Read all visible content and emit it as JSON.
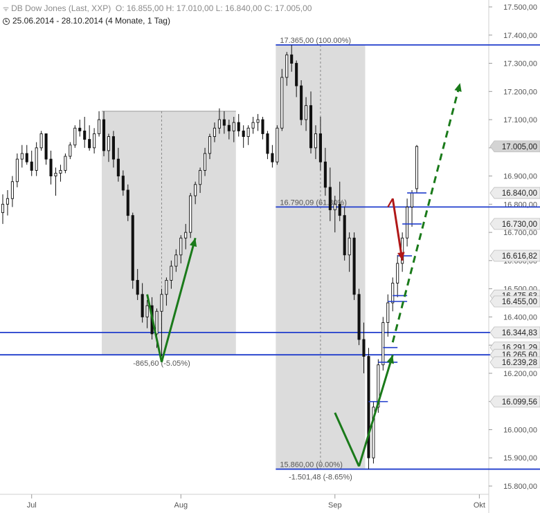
{
  "header": {
    "title": "DB Dow Jones (Last, XXP)",
    "ohlc": "O: 16.855,00  H: 17.010,00  L: 16.840,00  C: 17.005,00",
    "range": "25.06.2014 - 28.10.2014 (4 Monate, 1 Tag)"
  },
  "chart_data": {
    "type": "candlestick",
    "ylim": [
      15775,
      17520
    ],
    "y_ticks": [
      15800,
      15900,
      16000,
      16100,
      16200,
      16300,
      16400,
      16500,
      16600,
      16700,
      16800,
      16900,
      17000,
      17100,
      17200,
      17300,
      17400,
      17500
    ],
    "y_tick_labels": [
      "15.800,00",
      "15.900,00",
      "16.000,00",
      "16.100,00",
      "16.200,00",
      "16.300,00",
      "16.400,00",
      "16.500,00",
      "16.600,00",
      "16.700,00",
      "16.800,00",
      "16.900,00",
      "17.000,00",
      "17.100,00",
      "17.200,00",
      "17.300,00",
      "17.400,00",
      "17.500,00"
    ],
    "x_labels": [
      {
        "label": "Jul",
        "day": 6
      },
      {
        "label": "Aug",
        "day": 37
      },
      {
        "label": "Sep",
        "day": 69
      },
      {
        "label": "Okt",
        "day": 99
      }
    ],
    "x_range": [
      0,
      160
    ],
    "candles": [
      [
        16770,
        16835,
        16730,
        16800
      ],
      [
        16800,
        16850,
        16760,
        16820
      ],
      [
        16820,
        16900,
        16790,
        16880
      ],
      [
        16880,
        16980,
        16860,
        16960
      ],
      [
        16960,
        17010,
        16930,
        16980
      ],
      [
        16980,
        17010,
        16940,
        16950
      ],
      [
        16950,
        16990,
        16900,
        16920
      ],
      [
        16920,
        17020,
        16900,
        17000
      ],
      [
        17000,
        17060,
        16990,
        17050
      ],
      [
        17050,
        17040,
        16940,
        16960
      ],
      [
        16960,
        16990,
        16870,
        16900
      ],
      [
        16900,
        16930,
        16830,
        16910
      ],
      [
        16910,
        16940,
        16880,
        16920
      ],
      [
        16920,
        16980,
        16910,
        16970
      ],
      [
        16970,
        17020,
        16960,
        17010
      ],
      [
        17010,
        17080,
        17000,
        17070
      ],
      [
        17070,
        17100,
        17040,
        17060
      ],
      [
        17060,
        17110,
        17000,
        17030
      ],
      [
        17030,
        17080,
        16990,
        17000
      ],
      [
        17000,
        17070,
        16980,
        17050
      ],
      [
        17050,
        17130,
        17040,
        17100
      ],
      [
        17100,
        17130,
        16970,
        16990
      ],
      [
        16990,
        17050,
        16950,
        17040
      ],
      [
        17040,
        17060,
        16930,
        16960
      ],
      [
        16960,
        17000,
        16880,
        16900
      ],
      [
        16900,
        16920,
        16830,
        16850
      ],
      [
        16850,
        16870,
        16740,
        16760
      ],
      [
        16760,
        16770,
        16500,
        16530
      ],
      [
        16530,
        16570,
        16460,
        16480
      ],
      [
        16480,
        16520,
        16380,
        16400
      ],
      [
        16400,
        16460,
        16360,
        16440
      ],
      [
        16440,
        16470,
        16320,
        16340
      ],
      [
        16340,
        16430,
        16290,
        16420
      ],
      [
        16420,
        16500,
        16260,
        16480
      ],
      [
        16480,
        16540,
        16440,
        16530
      ],
      [
        16530,
        16600,
        16500,
        16580
      ],
      [
        16580,
        16640,
        16560,
        16620
      ],
      [
        16620,
        16690,
        16590,
        16680
      ],
      [
        16680,
        16730,
        16640,
        16700
      ],
      [
        16700,
        16840,
        16680,
        16830
      ],
      [
        16830,
        16880,
        16800,
        16870
      ],
      [
        16870,
        16930,
        16840,
        16920
      ],
      [
        16920,
        17000,
        16900,
        16980
      ],
      [
        16980,
        17050,
        16960,
        17040
      ],
      [
        17040,
        17090,
        17020,
        17070
      ],
      [
        17070,
        17140,
        17050,
        17100
      ],
      [
        17100,
        17130,
        17050,
        17080
      ],
      [
        17080,
        17100,
        17030,
        17060
      ],
      [
        17060,
        17110,
        17020,
        17090
      ],
      [
        17090,
        17120,
        17040,
        17060
      ],
      [
        17060,
        17080,
        17000,
        17040
      ],
      [
        17040,
        17080,
        17010,
        17070
      ],
      [
        17070,
        17110,
        17050,
        17090
      ],
      [
        17090,
        17120,
        17060,
        17100
      ],
      [
        17100,
        17110,
        17030,
        17050
      ],
      [
        17050,
        17060,
        16960,
        16980
      ],
      [
        16980,
        17010,
        16930,
        16950
      ],
      [
        16950,
        17080,
        16940,
        17070
      ],
      [
        17070,
        17280,
        17060,
        17250
      ],
      [
        17250,
        17340,
        17220,
        17330
      ],
      [
        17330,
        17365,
        17270,
        17300
      ],
      [
        17300,
        17310,
        17180,
        17220
      ],
      [
        17220,
        17240,
        17080,
        17100
      ],
      [
        17100,
        17180,
        17060,
        17150
      ],
      [
        17150,
        17200,
        16980,
        17000
      ],
      [
        17000,
        17080,
        16960,
        17050
      ],
      [
        17050,
        17110,
        16920,
        16950
      ],
      [
        16950,
        17000,
        16830,
        16860
      ],
      [
        16860,
        16930,
        16740,
        16780
      ],
      [
        16780,
        16830,
        16700,
        16800
      ],
      [
        16800,
        16880,
        16740,
        16760
      ],
      [
        16760,
        16790,
        16600,
        16620
      ],
      [
        16620,
        16700,
        16560,
        16680
      ],
      [
        16680,
        16700,
        16460,
        16480
      ],
      [
        16480,
        16500,
        16300,
        16320
      ],
      [
        16320,
        16380,
        16200,
        16260
      ],
      [
        16260,
        16290,
        15860,
        15900
      ],
      [
        15900,
        16100,
        15880,
        16080
      ],
      [
        16080,
        16250,
        16060,
        16230
      ],
      [
        16230,
        16400,
        16210,
        16380
      ],
      [
        16380,
        16480,
        16330,
        16450
      ],
      [
        16450,
        16540,
        16420,
        16520
      ],
      [
        16520,
        16620,
        16470,
        16590
      ],
      [
        16590,
        16700,
        16560,
        16680
      ],
      [
        16680,
        16820,
        16650,
        16790
      ],
      [
        16790,
        16850,
        16720,
        16840
      ],
      [
        16855,
        17010,
        16840,
        17005
      ]
    ],
    "levels": [
      {
        "value": 17365,
        "label": "17.365,00 (100.00%)"
      },
      {
        "value": 16790.09,
        "label": "16.790,09 (61.80%)"
      },
      {
        "value": 16344.83,
        "label": ""
      },
      {
        "value": 16265.6,
        "label": ""
      },
      {
        "value": 15860,
        "label": "15.860,00 (0.00%)"
      }
    ],
    "annotations": [
      {
        "text": "-865,60 (-5.05%)"
      },
      {
        "text": "-1.501,48 (-8.65%)"
      }
    ],
    "price_tags": [
      {
        "label": "17.005,00",
        "value": 17005,
        "style": "gray"
      },
      {
        "label": "16.840,00",
        "value": 16840,
        "style": "light"
      },
      {
        "label": "16.730,00",
        "value": 16730,
        "style": "light"
      },
      {
        "label": "16.616,82",
        "value": 16616.82,
        "style": "light"
      },
      {
        "label": "16.475,63",
        "value": 16475.63,
        "style": "light"
      },
      {
        "label": "16.455,00",
        "value": 16455,
        "style": "light"
      },
      {
        "label": "16.344,83",
        "value": 16344.83,
        "style": "light"
      },
      {
        "label": "16.291,29",
        "value": 16291.29,
        "style": "light"
      },
      {
        "label": "16.265,60",
        "value": 16265.6,
        "style": "light"
      },
      {
        "label": "16.239,28",
        "value": 16239.28,
        "style": "light"
      },
      {
        "label": "16.099,56",
        "value": 16099.56,
        "style": "light"
      }
    ],
    "colors": {
      "level_line": "#1f3ccc",
      "retrace_box": "#dcdcdc",
      "arrow_green": "#1a7a1a",
      "arrow_red": "#b01818",
      "candle": "#111111"
    }
  }
}
